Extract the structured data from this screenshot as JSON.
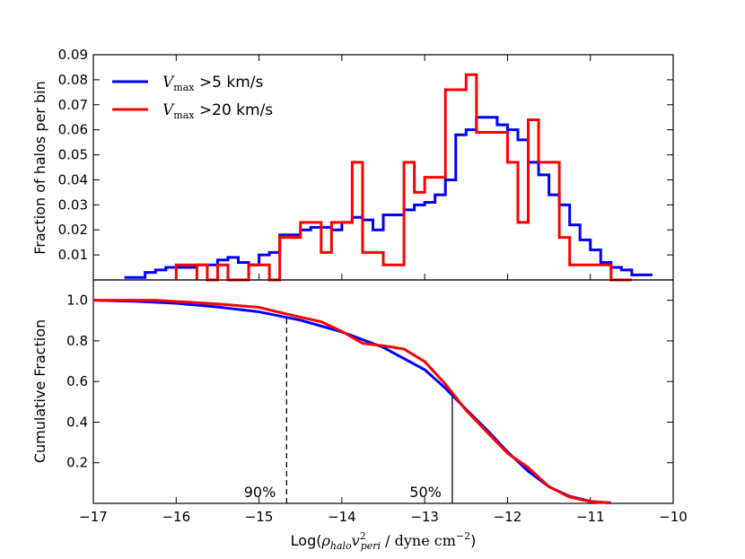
{
  "chart_data": [
    {
      "type": "line",
      "drawstyle": "steps",
      "ylabel": "Fraction of halos per bin",
      "xlim": [
        -17,
        -10
      ],
      "ylim": [
        0,
        0.09
      ],
      "yticks": [
        0.01,
        0.02,
        0.03,
        0.04,
        0.05,
        0.06,
        0.07,
        0.08,
        0.09
      ],
      "ytick_labels": [
        "0.01",
        "0.02",
        "0.03",
        "0.04",
        "0.05",
        "0.06",
        "0.07",
        "0.08",
        "0.09"
      ],
      "legend": {
        "placement": "top-left"
      },
      "series": [
        {
          "name": "blue",
          "legend_math": "V",
          "legend_sub": "max",
          "legend_rest": " >5 km/s",
          "color": "#0000ff",
          "edges": [
            -16.625,
            -16.375,
            -16.125,
            -15.875,
            -15.625,
            -15.375,
            -15.125,
            -14.875,
            -14.625,
            -14.375,
            -14.125,
            -13.875,
            -13.625,
            -13.375,
            -13.125,
            -12.875,
            -12.625,
            -12.375,
            -12.125,
            -11.875,
            -11.625,
            -11.375,
            -11.125,
            -10.875,
            -10.625,
            -10.375
          ],
          "steps": [
            [
              -16.625,
              0.001
            ],
            [
              -16.375,
              0.003
            ],
            [
              -16.25,
              0.004
            ],
            [
              -16.125,
              0.005
            ],
            [
              -15.875,
              0.005
            ],
            [
              -15.75,
              0.006
            ],
            [
              -15.625,
              0.006
            ],
            [
              -15.5,
              0.008
            ],
            [
              -15.375,
              0.009
            ],
            [
              -15.25,
              0.007
            ],
            [
              -15.125,
              0.006
            ],
            [
              -15.0,
              0.01
            ],
            [
              -14.875,
              0.011
            ],
            [
              -14.75,
              0.018
            ],
            [
              -14.625,
              0.018
            ],
            [
              -14.5,
              0.02
            ],
            [
              -14.375,
              0.021
            ],
            [
              -14.25,
              0.021
            ],
            [
              -14.125,
              0.02
            ],
            [
              -14.0,
              0.023
            ],
            [
              -13.875,
              0.025
            ],
            [
              -13.75,
              0.024
            ],
            [
              -13.625,
              0.02
            ],
            [
              -13.5,
              0.026
            ],
            [
              -13.375,
              0.026
            ],
            [
              -13.25,
              0.028
            ],
            [
              -13.125,
              0.03
            ],
            [
              -13.0,
              0.031
            ],
            [
              -12.875,
              0.034
            ],
            [
              -12.75,
              0.04
            ],
            [
              -12.625,
              0.058
            ],
            [
              -12.5,
              0.06
            ],
            [
              -12.375,
              0.065
            ],
            [
              -12.25,
              0.065
            ],
            [
              -12.125,
              0.062
            ],
            [
              -12.0,
              0.06
            ],
            [
              -11.875,
              0.056
            ],
            [
              -11.75,
              0.047
            ],
            [
              -11.625,
              0.042
            ],
            [
              -11.5,
              0.034
            ],
            [
              -11.375,
              0.03
            ],
            [
              -11.25,
              0.022
            ],
            [
              -11.125,
              0.016
            ],
            [
              -11.0,
              0.012
            ],
            [
              -10.875,
              0.007
            ],
            [
              -10.75,
              0.005
            ],
            [
              -10.625,
              0.004
            ],
            [
              -10.5,
              0.002
            ],
            [
              -10.375,
              0.002
            ]
          ]
        },
        {
          "name": "red",
          "legend_math": "V",
          "legend_sub": "max",
          "legend_rest": " >20 km/s",
          "color": "#ff0000",
          "steps": [
            [
              -16.0,
              0.0
            ],
            [
              -16.0,
              0.006
            ],
            [
              -15.75,
              0.0
            ],
            [
              -15.75,
              0.006
            ],
            [
              -15.625,
              0.0
            ],
            [
              -15.5,
              0.006
            ],
            [
              -15.375,
              0.0
            ],
            [
              -15.125,
              0.006
            ],
            [
              -14.875,
              0.0
            ],
            [
              -14.75,
              0.017
            ],
            [
              -14.5,
              0.023
            ],
            [
              -14.25,
              0.011
            ],
            [
              -14.125,
              0.023
            ],
            [
              -13.875,
              0.047
            ],
            [
              -13.75,
              0.011
            ],
            [
              -13.5,
              0.006
            ],
            [
              -13.25,
              0.047
            ],
            [
              -13.125,
              0.035
            ],
            [
              -13.0,
              0.041
            ],
            [
              -12.75,
              0.076
            ],
            [
              -12.5,
              0.082
            ],
            [
              -12.375,
              0.059
            ],
            [
              -12.0,
              0.047
            ],
            [
              -11.875,
              0.023
            ],
            [
              -11.75,
              0.064
            ],
            [
              -11.625,
              0.047
            ],
            [
              -11.375,
              0.017
            ],
            [
              -11.25,
              0.006
            ],
            [
              -11.0,
              0.006
            ],
            [
              -10.75,
              0.0
            ]
          ],
          "end_x": -10.5
        }
      ]
    },
    {
      "type": "line",
      "xlabel": "Log(ρ_halo v_peri^2 / dyne cm^-2)",
      "ylabel": "Cumulative Fraction",
      "xlim": [
        -17,
        -10
      ],
      "ylim": [
        0,
        1.1
      ],
      "xticks": [
        -17,
        -16,
        -15,
        -14,
        -13,
        -12,
        -11,
        -10
      ],
      "xtick_labels": [
        "−17",
        "−16",
        "−15",
        "−14",
        "−13",
        "−12",
        "−11",
        "−10"
      ],
      "yticks": [
        0.2,
        0.4,
        0.6,
        0.8,
        1.0
      ],
      "ytick_labels": [
        "0.2",
        "0.4",
        "0.6",
        "0.8",
        "1.0"
      ],
      "series": [
        {
          "name": "blue",
          "color": "#0000ff",
          "x": [
            -17.0,
            -16.5,
            -16.0,
            -15.5,
            -15.0,
            -14.5,
            -14.0,
            -13.5,
            -13.0,
            -12.75,
            -12.5,
            -12.25,
            -12.0,
            -11.75,
            -11.5,
            -11.25,
            -11.0,
            -10.75
          ],
          "y": [
            1.0,
            0.995,
            0.985,
            0.967,
            0.943,
            0.902,
            0.844,
            0.768,
            0.658,
            0.567,
            0.463,
            0.362,
            0.254,
            0.158,
            0.082,
            0.035,
            0.01,
            0.002
          ]
        },
        {
          "name": "red",
          "color": "#ff0000",
          "x": [
            -17.0,
            -16.25,
            -16.0,
            -15.5,
            -15.0,
            -14.75,
            -14.5,
            -14.25,
            -14.0,
            -13.75,
            -13.5,
            -13.25,
            -13.0,
            -12.75,
            -12.5,
            -12.25,
            -12.0,
            -11.75,
            -11.5,
            -11.25,
            -11.0,
            -10.75
          ],
          "y": [
            1.0,
            1.0,
            0.994,
            0.982,
            0.965,
            0.94,
            0.917,
            0.894,
            0.847,
            0.788,
            0.776,
            0.76,
            0.698,
            0.587,
            0.458,
            0.352,
            0.247,
            0.176,
            0.082,
            0.031,
            0.009,
            0.002
          ]
        }
      ],
      "markers": [
        {
          "x": -14.667,
          "y_top": 0.91,
          "style": "dashed",
          "label": "90%"
        },
        {
          "x": -12.667,
          "y_top": 0.545,
          "style": "solid",
          "label": "50%"
        }
      ]
    }
  ]
}
